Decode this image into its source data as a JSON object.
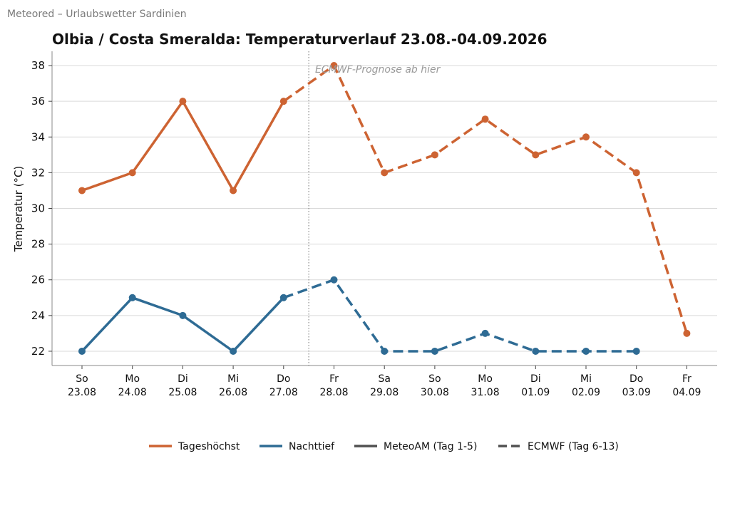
{
  "header": {
    "source": "Meteored – Urlaubswetter Sardinien"
  },
  "chart_data": {
    "type": "line",
    "title": "Olbia / Costa Smeralda: Temperaturverlauf 23.08.-04.09.2026",
    "ylabel": "Temperatur (°C)",
    "xlabel": "",
    "ylim": [
      21.2,
      38.8
    ],
    "yticks": [
      22,
      24,
      26,
      28,
      30,
      32,
      34,
      36,
      38
    ],
    "grid": "horizontal",
    "categories": [
      {
        "day": "So",
        "date": "23.08"
      },
      {
        "day": "Mo",
        "date": "24.08"
      },
      {
        "day": "Di",
        "date": "25.08"
      },
      {
        "day": "Mi",
        "date": "26.08"
      },
      {
        "day": "Do",
        "date": "27.08"
      },
      {
        "day": "Fr",
        "date": "28.08"
      },
      {
        "day": "Sa",
        "date": "29.08"
      },
      {
        "day": "So",
        "date": "30.08"
      },
      {
        "day": "Mo",
        "date": "31.08"
      },
      {
        "day": "Di",
        "date": "01.09"
      },
      {
        "day": "Mi",
        "date": "02.09"
      },
      {
        "day": "Do",
        "date": "03.09"
      },
      {
        "day": "Fr",
        "date": "04.09"
      }
    ],
    "series": [
      {
        "name": "Tageshöchst",
        "color": "#cd6332",
        "values": [
          31,
          32,
          36,
          31,
          36,
          38,
          32,
          33,
          35,
          33,
          34,
          32,
          23
        ]
      },
      {
        "name": "Nachttief",
        "color": "#2e6b94",
        "values": [
          22,
          25,
          24,
          22,
          25,
          26,
          22,
          22,
          23,
          22,
          22,
          22,
          null
        ]
      }
    ],
    "solid_until_index": 4,
    "forecast_divider_between": [
      4,
      5
    ],
    "annotation": "ECMWF-Prognose ab hier",
    "legend": {
      "placement": "bottom-center",
      "items": [
        {
          "label": "Tageshöchst",
          "color": "#cd6332",
          "style": "solid"
        },
        {
          "label": "Nachttief",
          "color": "#2e6b94",
          "style": "solid"
        },
        {
          "label": "MeteoAM (Tag 1-5)",
          "color": "#505050",
          "style": "solid"
        },
        {
          "label": "ECMWF (Tag 6-13)",
          "color": "#505050",
          "style": "dashed"
        }
      ]
    }
  }
}
